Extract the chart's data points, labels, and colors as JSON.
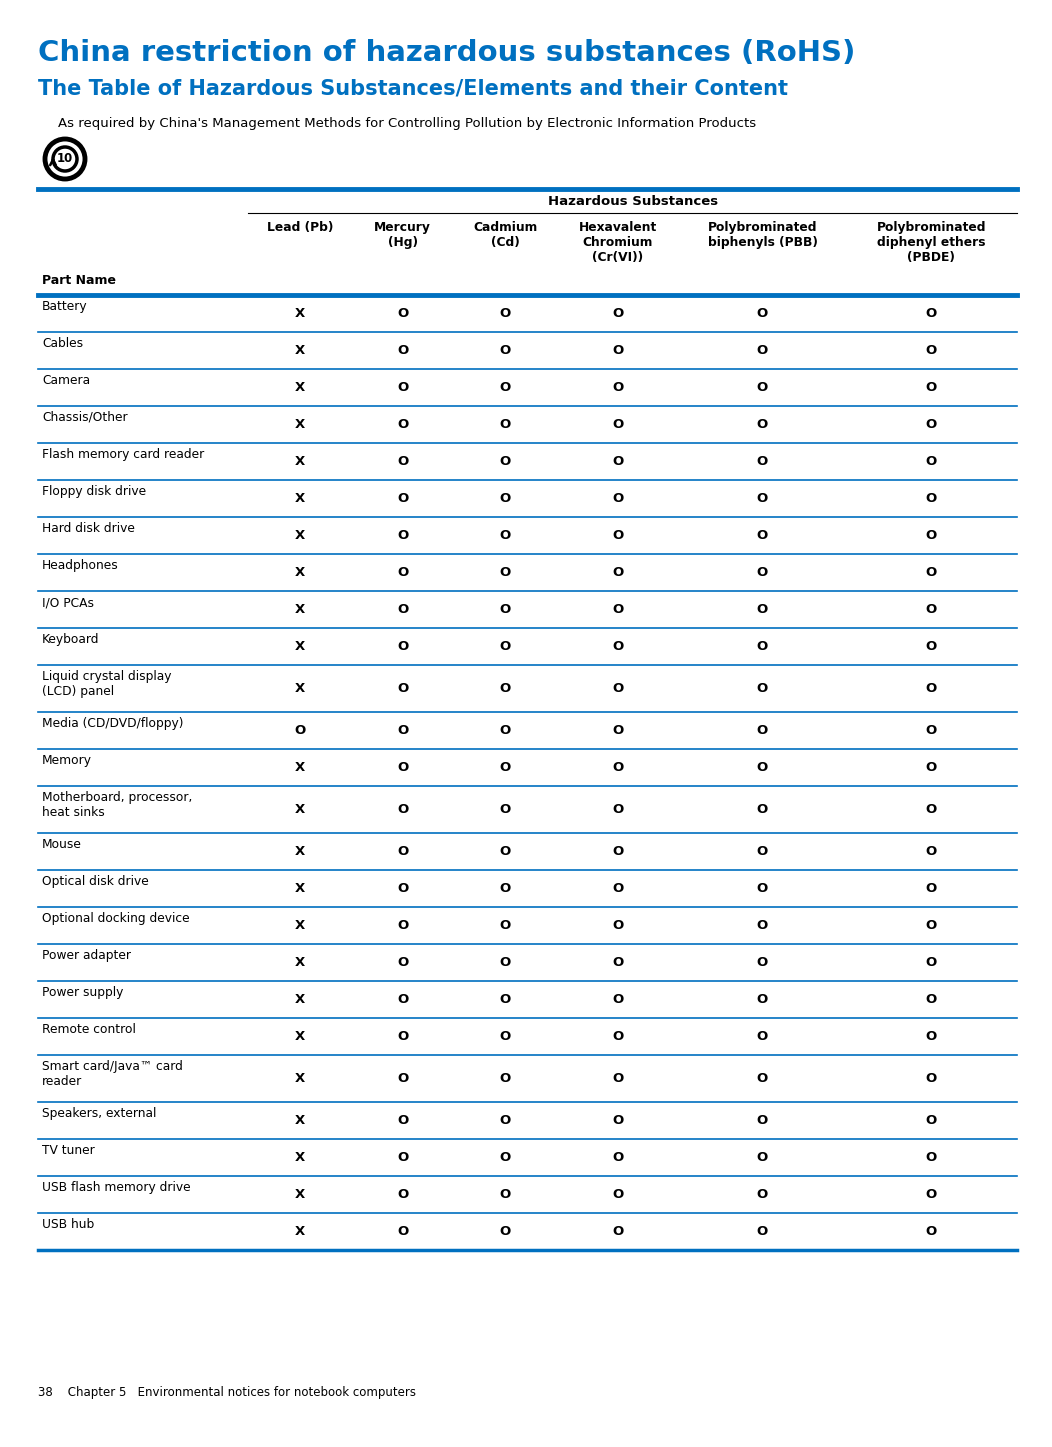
{
  "title1": "China restriction of hazardous substances (RoHS)",
  "title2": "The Table of Hazardous Substances/Elements and their Content",
  "subtitle": "As required by China's Management Methods for Controlling Pollution by Electronic Information Products",
  "title1_color": "#0070C0",
  "title2_color": "#0070C0",
  "subtitle_color": "#000000",
  "blue_line_color": "#0070C0",
  "header_group": "Hazardous Substances",
  "col_headers_line1": [
    "Part Name",
    "Lead (Pb)",
    "Mercury\n(Hg)",
    "Cadmium\n(Cd)",
    "Hexavalent\nChromium\n(Cr(VI))",
    "Polybrominated\nbiphenyls (PBB)",
    "Polybrominated\ndiphenyl ethers\n(PBDE)"
  ],
  "rows": [
    [
      "Battery",
      "X",
      "O",
      "O",
      "O",
      "O",
      "O"
    ],
    [
      "Cables",
      "X",
      "O",
      "O",
      "O",
      "O",
      "O"
    ],
    [
      "Camera",
      "X",
      "O",
      "O",
      "O",
      "O",
      "O"
    ],
    [
      "Chassis/Other",
      "X",
      "O",
      "O",
      "O",
      "O",
      "O"
    ],
    [
      "Flash memory card reader",
      "X",
      "O",
      "O",
      "O",
      "O",
      "O"
    ],
    [
      "Floppy disk drive",
      "X",
      "O",
      "O",
      "O",
      "O",
      "O"
    ],
    [
      "Hard disk drive",
      "X",
      "O",
      "O",
      "O",
      "O",
      "O"
    ],
    [
      "Headphones",
      "X",
      "O",
      "O",
      "O",
      "O",
      "O"
    ],
    [
      "I/O PCAs",
      "X",
      "O",
      "O",
      "O",
      "O",
      "O"
    ],
    [
      "Keyboard",
      "X",
      "O",
      "O",
      "O",
      "O",
      "O"
    ],
    [
      "Liquid crystal display\n(LCD) panel",
      "X",
      "O",
      "O",
      "O",
      "O",
      "O"
    ],
    [
      "Media (CD/DVD/floppy)",
      "O",
      "O",
      "O",
      "O",
      "O",
      "O"
    ],
    [
      "Memory",
      "X",
      "O",
      "O",
      "O",
      "O",
      "O"
    ],
    [
      "Motherboard, processor,\nheat sinks",
      "X",
      "O",
      "O",
      "O",
      "O",
      "O"
    ],
    [
      "Mouse",
      "X",
      "O",
      "O",
      "O",
      "O",
      "O"
    ],
    [
      "Optical disk drive",
      "X",
      "O",
      "O",
      "O",
      "O",
      "O"
    ],
    [
      "Optional docking device",
      "X",
      "O",
      "O",
      "O",
      "O",
      "O"
    ],
    [
      "Power adapter",
      "X",
      "O",
      "O",
      "O",
      "O",
      "O"
    ],
    [
      "Power supply",
      "X",
      "O",
      "O",
      "O",
      "O",
      "O"
    ],
    [
      "Remote control",
      "X",
      "O",
      "O",
      "O",
      "O",
      "O"
    ],
    [
      "Smart card/Java™ card\nreader",
      "X",
      "O",
      "O",
      "O",
      "O",
      "O"
    ],
    [
      "Speakers, external",
      "X",
      "O",
      "O",
      "O",
      "O",
      "O"
    ],
    [
      "TV tuner",
      "X",
      "O",
      "O",
      "O",
      "O",
      "O"
    ],
    [
      "USB flash memory drive",
      "X",
      "O",
      "O",
      "O",
      "O",
      "O"
    ],
    [
      "USB hub",
      "X",
      "O",
      "O",
      "O",
      "O",
      "O"
    ]
  ],
  "footer": "38    Chapter 5   Environmental notices for notebook computers",
  "bg_color": "#ffffff",
  "row_line_color": "#0070C0"
}
